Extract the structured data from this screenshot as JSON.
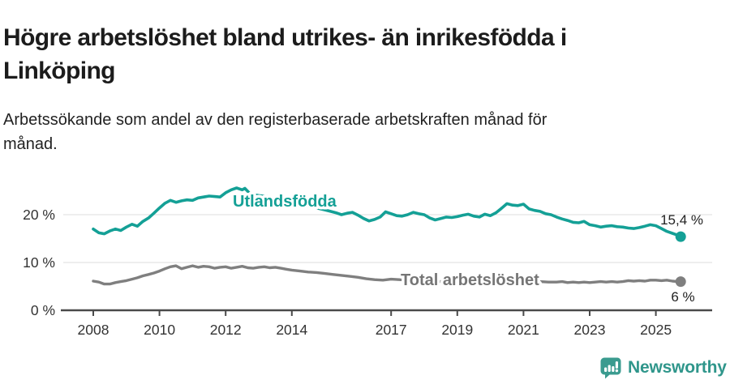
{
  "header": {
    "title_line1": "Högre arbetslöshet bland utrikes- än inrikesfödda i",
    "title_line2": "Linköping",
    "subtitle_line1": "Arbetssökande som andel av den registerbaserade arbetskraften månad för",
    "subtitle_line2": "månad."
  },
  "colors": {
    "accent_teal": "#14A096",
    "line_gray": "#7F7F7F",
    "gray_label": "#757575",
    "grid": "#DCDCDC",
    "axis": "#4A4A4A",
    "tick_text": "#333333",
    "end_label_text": "#222222",
    "brand_teal": "#2F968B"
  },
  "chart_data": {
    "type": "line",
    "x_unit": "year (decimal years, monthly observations)",
    "ylabel": "",
    "xlabel": "",
    "ylim": [
      0,
      27
    ],
    "grid": "horizontal",
    "legend_position": "inline-labels",
    "yticks": [
      {
        "value": 0,
        "label": "0 %"
      },
      {
        "value": 10,
        "label": "10 %"
      },
      {
        "value": 20,
        "label": "20 %"
      }
    ],
    "xticks": [
      {
        "value": 2008,
        "label": "2008"
      },
      {
        "value": 2010,
        "label": "2010"
      },
      {
        "value": 2012,
        "label": "2012"
      },
      {
        "value": 2014,
        "label": "2014"
      },
      {
        "value": 2017,
        "label": "2017"
      },
      {
        "value": 2019,
        "label": "2019"
      },
      {
        "value": 2021,
        "label": "2021"
      },
      {
        "value": 2023,
        "label": "2023"
      },
      {
        "value": 2025,
        "label": "2025"
      }
    ],
    "series": [
      {
        "name": "Utlandsfödda",
        "color": "#14A096",
        "end_label": "15,4 %",
        "end_value": 15.4,
        "points": [
          [
            2008.0,
            17.0
          ],
          [
            2008.17,
            16.2
          ],
          [
            2008.33,
            16.0
          ],
          [
            2008.5,
            16.6
          ],
          [
            2008.67,
            17.0
          ],
          [
            2008.83,
            16.7
          ],
          [
            2009.0,
            17.4
          ],
          [
            2009.17,
            18.0
          ],
          [
            2009.33,
            17.6
          ],
          [
            2009.5,
            18.6
          ],
          [
            2009.67,
            19.3
          ],
          [
            2009.83,
            20.3
          ],
          [
            2010.0,
            21.4
          ],
          [
            2010.17,
            22.4
          ],
          [
            2010.33,
            23.0
          ],
          [
            2010.5,
            22.6
          ],
          [
            2010.67,
            22.9
          ],
          [
            2010.83,
            23.1
          ],
          [
            2011.0,
            23.0
          ],
          [
            2011.17,
            23.5
          ],
          [
            2011.33,
            23.7
          ],
          [
            2011.5,
            23.9
          ],
          [
            2011.67,
            23.8
          ],
          [
            2011.83,
            23.7
          ],
          [
            2012.0,
            24.6
          ],
          [
            2012.17,
            25.2
          ],
          [
            2012.33,
            25.6
          ],
          [
            2012.5,
            25.2
          ],
          [
            2012.58,
            25.5
          ],
          [
            2012.75,
            24.3
          ],
          [
            2012.92,
            24.1
          ],
          [
            2013.0,
            24.0
          ],
          [
            2013.25,
            23.8
          ],
          [
            2013.5,
            23.4
          ],
          [
            2013.75,
            23.1
          ],
          [
            2014.0,
            22.6
          ],
          [
            2014.25,
            22.1
          ],
          [
            2014.5,
            21.7
          ],
          [
            2014.75,
            21.4
          ],
          [
            2015.0,
            21.0
          ],
          [
            2015.17,
            20.7
          ],
          [
            2015.33,
            20.4
          ],
          [
            2015.5,
            20.0
          ],
          [
            2015.67,
            20.3
          ],
          [
            2015.83,
            20.5
          ],
          [
            2016.0,
            19.9
          ],
          [
            2016.17,
            19.2
          ],
          [
            2016.33,
            18.7
          ],
          [
            2016.5,
            19.0
          ],
          [
            2016.67,
            19.5
          ],
          [
            2016.83,
            20.6
          ],
          [
            2017.0,
            20.2
          ],
          [
            2017.17,
            19.8
          ],
          [
            2017.33,
            19.7
          ],
          [
            2017.5,
            20.0
          ],
          [
            2017.67,
            20.5
          ],
          [
            2017.83,
            20.2
          ],
          [
            2018.0,
            20.0
          ],
          [
            2018.17,
            19.3
          ],
          [
            2018.33,
            18.9
          ],
          [
            2018.5,
            19.2
          ],
          [
            2018.67,
            19.5
          ],
          [
            2018.83,
            19.4
          ],
          [
            2019.0,
            19.6
          ],
          [
            2019.17,
            19.9
          ],
          [
            2019.33,
            20.1
          ],
          [
            2019.5,
            19.7
          ],
          [
            2019.67,
            19.5
          ],
          [
            2019.83,
            20.1
          ],
          [
            2020.0,
            19.8
          ],
          [
            2020.17,
            20.4
          ],
          [
            2020.33,
            21.3
          ],
          [
            2020.5,
            22.3
          ],
          [
            2020.67,
            22.0
          ],
          [
            2020.83,
            21.9
          ],
          [
            2021.0,
            22.2
          ],
          [
            2021.17,
            21.2
          ],
          [
            2021.33,
            20.9
          ],
          [
            2021.5,
            20.7
          ],
          [
            2021.67,
            20.2
          ],
          [
            2021.83,
            20.0
          ],
          [
            2022.0,
            19.5
          ],
          [
            2022.17,
            19.1
          ],
          [
            2022.33,
            18.8
          ],
          [
            2022.5,
            18.4
          ],
          [
            2022.67,
            18.3
          ],
          [
            2022.83,
            18.6
          ],
          [
            2023.0,
            17.9
          ],
          [
            2023.17,
            17.7
          ],
          [
            2023.33,
            17.4
          ],
          [
            2023.5,
            17.6
          ],
          [
            2023.67,
            17.7
          ],
          [
            2023.83,
            17.5
          ],
          [
            2024.0,
            17.4
          ],
          [
            2024.17,
            17.2
          ],
          [
            2024.33,
            17.1
          ],
          [
            2024.5,
            17.3
          ],
          [
            2024.67,
            17.6
          ],
          [
            2024.83,
            17.9
          ],
          [
            2025.0,
            17.7
          ],
          [
            2025.17,
            17.1
          ],
          [
            2025.33,
            16.5
          ],
          [
            2025.5,
            16.1
          ],
          [
            2025.67,
            15.7
          ],
          [
            2025.75,
            15.4
          ]
        ]
      },
      {
        "name": "Total arbetslöshet",
        "color": "#7F7F7F",
        "end_label": "6 %",
        "end_value": 6.0,
        "points": [
          [
            2008.0,
            6.1
          ],
          [
            2008.17,
            5.9
          ],
          [
            2008.33,
            5.5
          ],
          [
            2008.5,
            5.5
          ],
          [
            2008.67,
            5.8
          ],
          [
            2008.83,
            6.0
          ],
          [
            2009.0,
            6.2
          ],
          [
            2009.17,
            6.5
          ],
          [
            2009.33,
            6.8
          ],
          [
            2009.5,
            7.2
          ],
          [
            2009.67,
            7.5
          ],
          [
            2009.83,
            7.8
          ],
          [
            2010.0,
            8.2
          ],
          [
            2010.17,
            8.7
          ],
          [
            2010.33,
            9.1
          ],
          [
            2010.5,
            9.3
          ],
          [
            2010.67,
            8.7
          ],
          [
            2010.83,
            9.0
          ],
          [
            2011.0,
            9.3
          ],
          [
            2011.17,
            9.0
          ],
          [
            2011.33,
            9.2
          ],
          [
            2011.5,
            9.1
          ],
          [
            2011.67,
            8.8
          ],
          [
            2011.83,
            9.0
          ],
          [
            2012.0,
            9.1
          ],
          [
            2012.17,
            8.8
          ],
          [
            2012.33,
            9.0
          ],
          [
            2012.5,
            9.2
          ],
          [
            2012.67,
            8.9
          ],
          [
            2012.83,
            8.8
          ],
          [
            2013.0,
            9.0
          ],
          [
            2013.17,
            9.1
          ],
          [
            2013.33,
            8.9
          ],
          [
            2013.5,
            9.0
          ],
          [
            2013.67,
            8.8
          ],
          [
            2013.83,
            8.6
          ],
          [
            2014.0,
            8.4
          ],
          [
            2014.25,
            8.2
          ],
          [
            2014.5,
            8.0
          ],
          [
            2014.75,
            7.9
          ],
          [
            2015.0,
            7.7
          ],
          [
            2015.25,
            7.5
          ],
          [
            2015.5,
            7.3
          ],
          [
            2015.75,
            7.1
          ],
          [
            2016.0,
            6.9
          ],
          [
            2016.25,
            6.6
          ],
          [
            2016.5,
            6.4
          ],
          [
            2016.75,
            6.3
          ],
          [
            2017.0,
            6.5
          ],
          [
            2017.25,
            6.4
          ],
          [
            2017.5,
            6.3
          ],
          [
            2017.75,
            6.2
          ],
          [
            2018.0,
            6.2
          ],
          [
            2018.25,
            6.1
          ],
          [
            2018.5,
            6.0
          ],
          [
            2018.75,
            6.0
          ],
          [
            2019.0,
            6.0
          ],
          [
            2019.25,
            6.0
          ],
          [
            2019.5,
            6.1
          ],
          [
            2019.75,
            6.1
          ],
          [
            2020.0,
            6.2
          ],
          [
            2020.25,
            6.5
          ],
          [
            2020.5,
            6.6
          ],
          [
            2020.75,
            6.5
          ],
          [
            2021.0,
            6.4
          ],
          [
            2021.25,
            6.2
          ],
          [
            2021.5,
            6.0
          ],
          [
            2021.75,
            5.9
          ],
          [
            2022.0,
            5.9
          ],
          [
            2022.17,
            6.0
          ],
          [
            2022.33,
            5.8
          ],
          [
            2022.5,
            5.9
          ],
          [
            2022.67,
            5.8
          ],
          [
            2022.83,
            5.9
          ],
          [
            2023.0,
            5.8
          ],
          [
            2023.17,
            5.9
          ],
          [
            2023.33,
            6.0
          ],
          [
            2023.5,
            5.9
          ],
          [
            2023.67,
            6.0
          ],
          [
            2023.83,
            5.9
          ],
          [
            2024.0,
            6.0
          ],
          [
            2024.17,
            6.2
          ],
          [
            2024.33,
            6.1
          ],
          [
            2024.5,
            6.2
          ],
          [
            2024.67,
            6.1
          ],
          [
            2024.83,
            6.3
          ],
          [
            2025.0,
            6.3
          ],
          [
            2025.17,
            6.2
          ],
          [
            2025.33,
            6.3
          ],
          [
            2025.5,
            6.1
          ],
          [
            2025.67,
            6.0
          ],
          [
            2025.75,
            6.0
          ]
        ]
      }
    ]
  },
  "footer": {
    "brand": "Newsworthy",
    "brand_icon": "bar-chart-speech-bubble-icon"
  }
}
